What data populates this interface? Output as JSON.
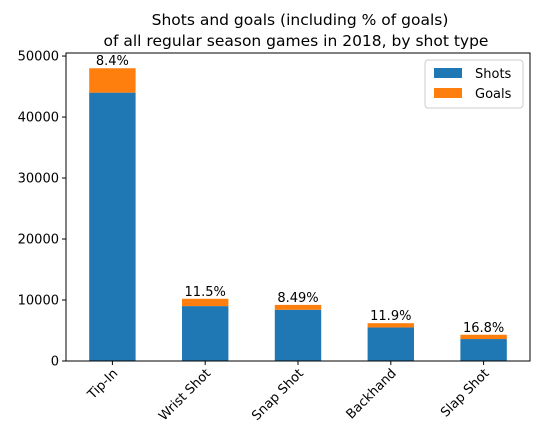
{
  "chart_data": {
    "type": "bar",
    "stacked": true,
    "title_lines": [
      "Shots and goals (including % of goals)",
      "of all regular season games in 2018, by shot type"
    ],
    "xlabel": "",
    "ylabel": "",
    "categories": [
      "Tip-In",
      "Wrist Shot",
      "Snap Shot",
      "Backhand",
      "Slap Shot"
    ],
    "series": [
      {
        "name": "Shots",
        "color": "#1f77b4",
        "values": [
          44000,
          9000,
          8400,
          5500,
          3600
        ]
      },
      {
        "name": "Goals",
        "color": "#ff7f0e",
        "values": [
          4000,
          1200,
          800,
          700,
          700
        ]
      }
    ],
    "bar_labels": [
      "8.4%",
      "11.5%",
      "8.49%",
      "11.9%",
      "16.8%"
    ],
    "ylim": [
      0,
      50500
    ],
    "yticks": [
      0,
      10000,
      20000,
      30000,
      40000,
      50000
    ],
    "grid": false,
    "legend_position": "upper right"
  }
}
